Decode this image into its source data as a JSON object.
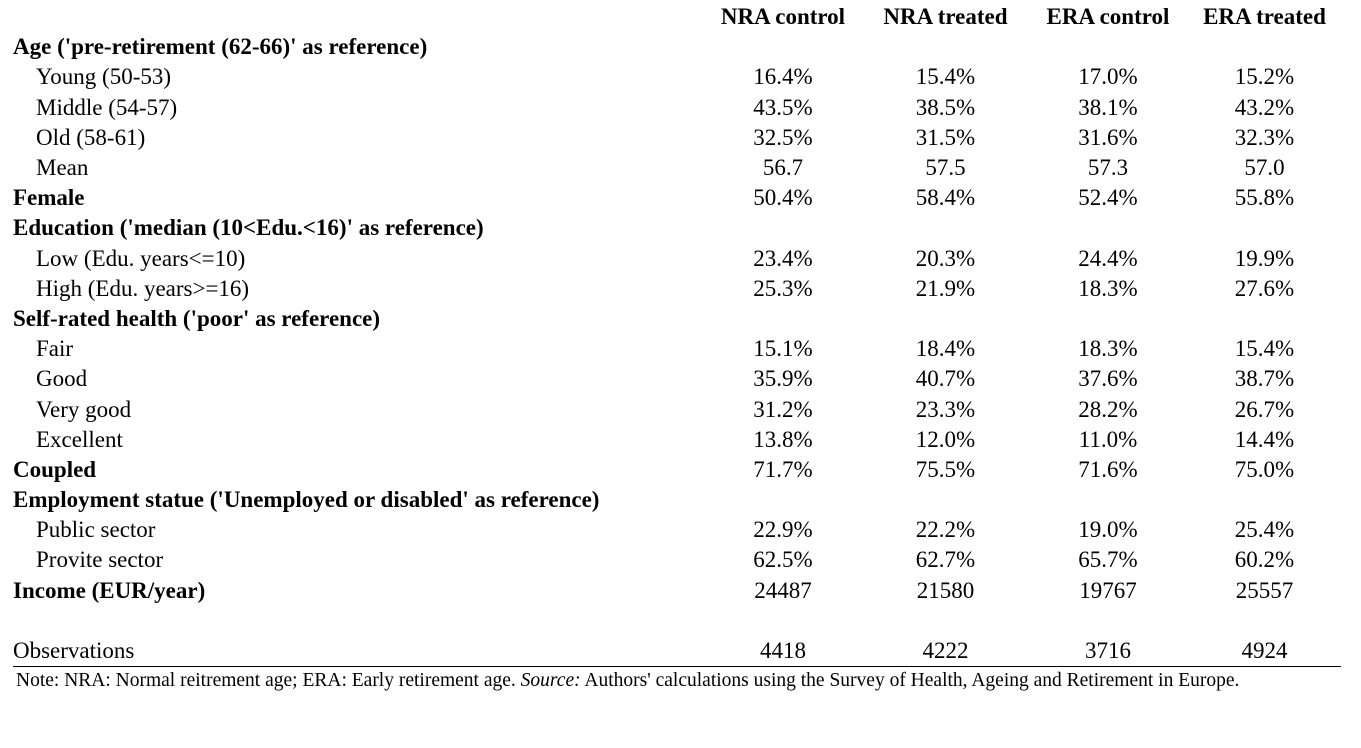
{
  "columns": [
    "NRA control",
    "NRA treated",
    "ERA control",
    "ERA treated"
  ],
  "rows": [
    {
      "label": "Age ('pre-retirement (62-66)' as reference)",
      "kind": "cat",
      "values": [
        "",
        "",
        "",
        ""
      ]
    },
    {
      "label": "Young (50-53)",
      "kind": "sub",
      "values": [
        "16.4%",
        "15.4%",
        "17.0%",
        "15.2%"
      ]
    },
    {
      "label": "Middle (54-57)",
      "kind": "sub",
      "values": [
        "43.5%",
        "38.5%",
        "38.1%",
        "43.2%"
      ]
    },
    {
      "label": "Old (58-61)",
      "kind": "sub",
      "values": [
        "32.5%",
        "31.5%",
        "31.6%",
        "32.3%"
      ]
    },
    {
      "label": "Mean",
      "kind": "sub",
      "values": [
        "56.7",
        "57.5",
        "57.3",
        "57.0"
      ]
    },
    {
      "label": "Female",
      "kind": "cat",
      "values": [
        "50.4%",
        "58.4%",
        "52.4%",
        "55.8%"
      ]
    },
    {
      "label": "Education ('median (10<Edu.<16)' as reference)",
      "kind": "cat",
      "values": [
        "",
        "",
        "",
        ""
      ]
    },
    {
      "label": "Low (Edu. years<=10)",
      "kind": "sub",
      "values": [
        "23.4%",
        "20.3%",
        "24.4%",
        "19.9%"
      ]
    },
    {
      "label": "High (Edu. years>=16)",
      "kind": "sub",
      "values": [
        "25.3%",
        "21.9%",
        "18.3%",
        "27.6%"
      ]
    },
    {
      "label": "Self-rated health ('poor' as reference)",
      "kind": "cat",
      "values": [
        "",
        "",
        "",
        ""
      ]
    },
    {
      "label": "Fair",
      "kind": "sub",
      "values": [
        "15.1%",
        "18.4%",
        "18.3%",
        "15.4%"
      ]
    },
    {
      "label": "Good",
      "kind": "sub",
      "values": [
        "35.9%",
        "40.7%",
        "37.6%",
        "38.7%"
      ]
    },
    {
      "label": "Very good",
      "kind": "sub",
      "values": [
        "31.2%",
        "23.3%",
        "28.2%",
        "26.7%"
      ]
    },
    {
      "label": "Excellent",
      "kind": "sub",
      "values": [
        "13.8%",
        "12.0%",
        "11.0%",
        "14.4%"
      ]
    },
    {
      "label": "Coupled",
      "kind": "cat",
      "values": [
        "71.7%",
        "75.5%",
        "71.6%",
        "75.0%"
      ]
    },
    {
      "label": "Employment statue ('Unemployed or disabled' as reference)",
      "kind": "cat",
      "values": [
        "",
        "",
        "",
        ""
      ]
    },
    {
      "label": "Public sector",
      "kind": "sub",
      "values": [
        "22.9%",
        "22.2%",
        "19.0%",
        "25.4%"
      ]
    },
    {
      "label": "Provite sector",
      "kind": "sub",
      "values": [
        "62.5%",
        "62.7%",
        "65.7%",
        "60.2%"
      ]
    },
    {
      "label": "Income (EUR/year)",
      "kind": "cat",
      "values": [
        "24487",
        "21580",
        "19767",
        "25557"
      ]
    }
  ],
  "observations": {
    "label": "Observations",
    "values": [
      "4418",
      "4222",
      "3716",
      "4924"
    ]
  },
  "note": {
    "prefix": "Note: NRA: Normal reitrement age; ERA: Early retirement age. ",
    "source_label": "Source:",
    "suffix": "  Authors' calculations using the Survey of Health, Ageing and Retirement in Europe."
  }
}
